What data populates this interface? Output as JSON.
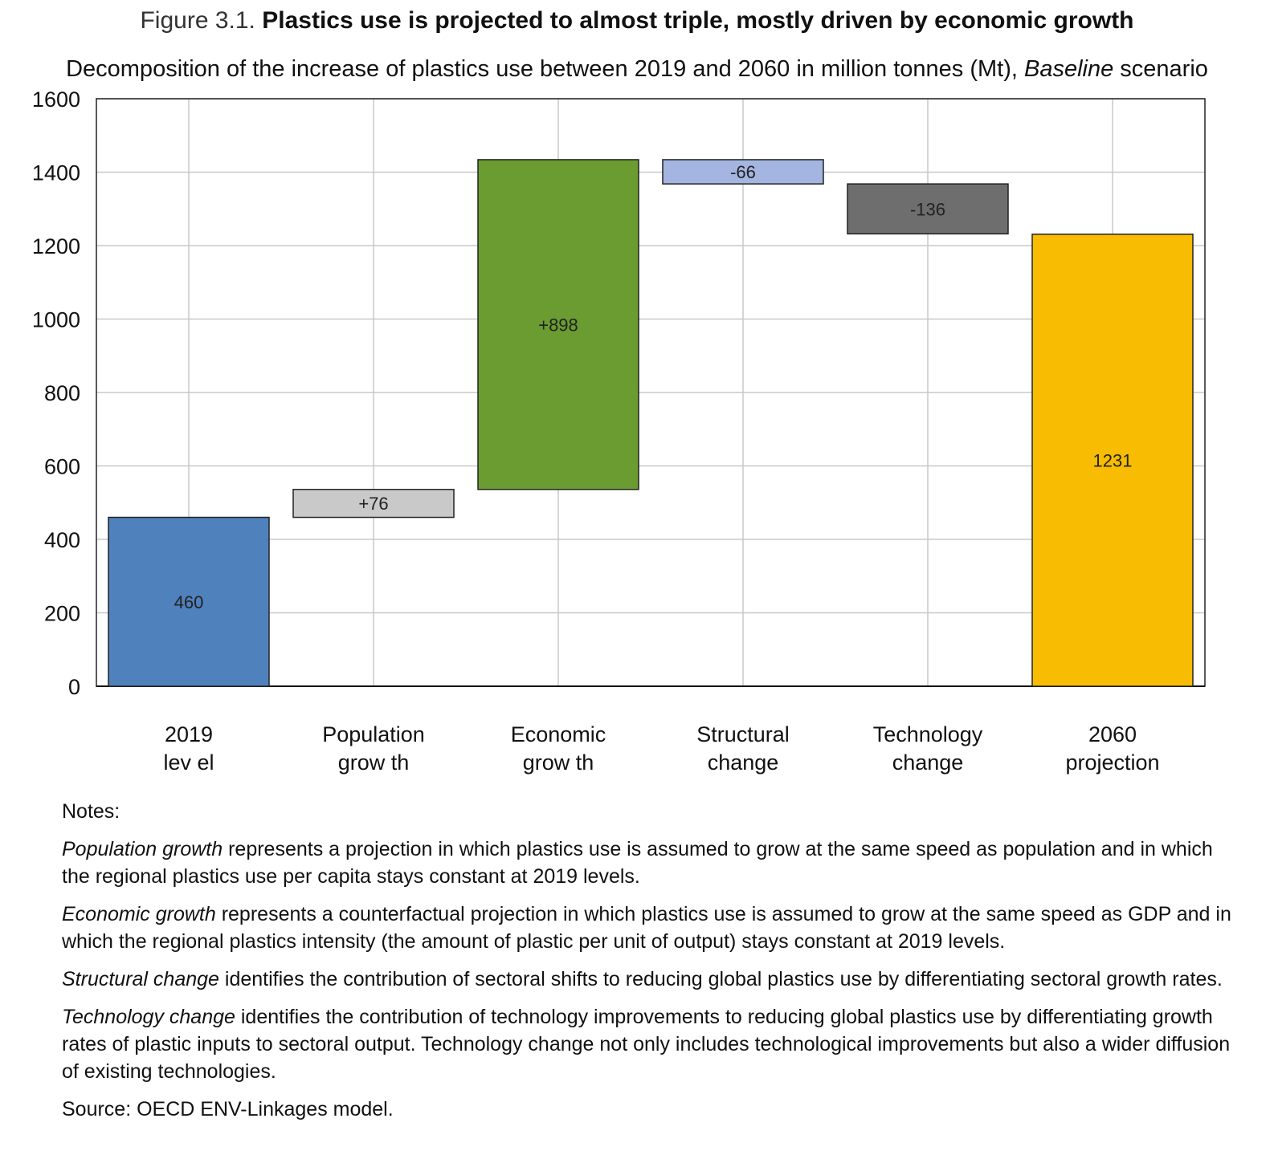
{
  "header": {
    "figure_label": "Figure 3.1.",
    "title": "Plastics use is projected to almost triple, mostly driven by economic growth",
    "subtitle_pre": "Decomposition of the increase of plastics use between 2019 and 2060 in million tonnes (Mt),",
    "subtitle_em": "Baseline",
    "subtitle_post": "scenario"
  },
  "chart_data": {
    "type": "bar",
    "subtype": "waterfall",
    "categories": [
      "2019 level",
      "Population growth",
      "Economic growth",
      "Structural change",
      "Technology change",
      "2060 projection"
    ],
    "category_lines": [
      [
        "2019",
        "lev el"
      ],
      [
        "Population",
        "grow th"
      ],
      [
        "Economic",
        "grow th"
      ],
      [
        "Structural",
        "change"
      ],
      [
        "Technology",
        "change"
      ],
      [
        "2060",
        "projection"
      ]
    ],
    "bars": [
      {
        "start": 0,
        "end": 460,
        "label": "460",
        "color": "#4f81bd"
      },
      {
        "start": 460,
        "end": 536,
        "label": "+76",
        "color": "#c9c9c9"
      },
      {
        "start": 536,
        "end": 1434,
        "label": "+898",
        "color": "#6a9c31"
      },
      {
        "start": 1434,
        "end": 1368,
        "label": "-66",
        "color": "#a3b5e0"
      },
      {
        "start": 1368,
        "end": 1232,
        "label": "-136",
        "color": "#6e6e6e"
      },
      {
        "start": 0,
        "end": 1231,
        "label": "1231",
        "color": "#f8bd02"
      }
    ],
    "yticks": [
      "0",
      "200",
      "400",
      "600",
      "800",
      "1000",
      "1200",
      "1400",
      "1600"
    ],
    "ylim": [
      0,
      1600
    ],
    "grid": true,
    "title": "Plastics use is projected to almost triple, mostly driven by economic growth",
    "xlabel": "",
    "ylabel": ""
  },
  "notes": {
    "heading": "Notes:",
    "items": [
      {
        "term": "Population growth",
        "text": "represents a projection in which plastics use is assumed to grow at the same speed as population and in which the regional plastics use per capita stays constant at 2019 levels."
      },
      {
        "term": "Economic growth",
        "text": "represents a counterfactual projection in which plastics use is assumed to grow at the same speed as GDP and in which the regional plastics intensity (the amount of plastic per unit of output) stays constant at 2019 levels."
      },
      {
        "term": "Structural change",
        "text": "identifies the contribution of sectoral shifts to reducing global plastics use by differentiating sectoral growth rates."
      },
      {
        "term": "Technology change",
        "text": "identifies the contribution of technology improvements to reducing global plastics use by differentiating growth rates of plastic inputs to sectoral output. Technology change not only includes technological improvements but also a wider diffusion of existing technologies."
      }
    ],
    "source": "Source: OECD ENV-Linkages model."
  }
}
